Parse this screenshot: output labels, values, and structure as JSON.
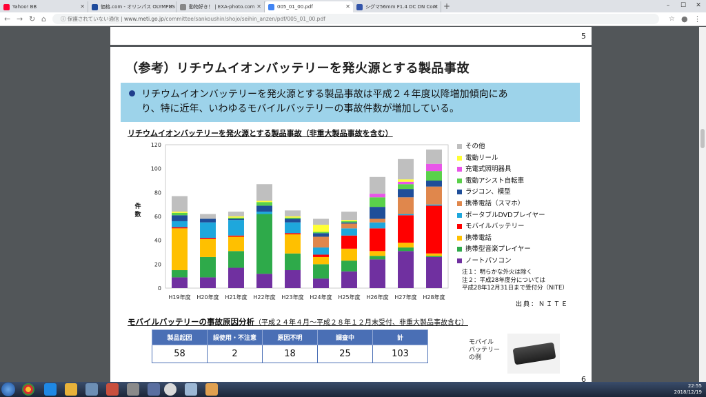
{
  "browser": {
    "tabs": [
      {
        "label": "Yahoo! BB",
        "icon_color": "#ff0033",
        "active": false
      },
      {
        "label": "価格.com - オリンパス OLYMPUS",
        "icon_color": "#1e4b9c",
        "active": false
      },
      {
        "label": "動物好き！ | EXA-photo.com",
        "icon_color": "#888888",
        "active": false
      },
      {
        "label": "005_01_00.pdf",
        "icon_color": "#4285f4",
        "active": true
      },
      {
        "label": "シグマ56mm F1.4 DC DN Cont",
        "icon_color": "#3355aa",
        "active": false
      }
    ],
    "security_label": "保護されていない通信",
    "url_host": "www.meti.go.jp",
    "url_path": "/committee/sankoushin/shojo/seihin_anzen/pdf/005_01_00.pdf"
  },
  "pdf": {
    "page_prev_number": "5",
    "page_number": "6",
    "title": "（参考）リチウムイオンバッテリーを発火源とする製品事故",
    "callout_line1": "リチウムイオンバッテリーを発火源とする製品事故は平成２４年度以降増加傾向にあ",
    "callout_line2": "り、特に近年、いわゆるモバイルバッテリーの事故件数が増加している。",
    "chart_title": "リチウムイオンバッテリーを発火源とする製品事故（非重大製品事故を含む）",
    "notes": [
      "注１：明らかな外火は除く",
      "注２：平成28年度分については",
      "平成28年12月31日まで受付分（NITE）"
    ],
    "source": "出典：ＮＩＴＥ",
    "section_title": "モバイルバッテリーの事故原因分析",
    "section_sub": "（平成２４年４月～平成２８年１２月末受付、非重大製品事故含む）",
    "table": {
      "headers": [
        "製品起因",
        "誤使用・不注意",
        "原因不明",
        "調査中",
        "計"
      ],
      "values": [
        "58",
        "2",
        "18",
        "25",
        "103"
      ]
    },
    "photo_label_1": "モバイル",
    "photo_label_2": "バッテリー",
    "photo_label_3": "の例"
  },
  "chart_data": {
    "type": "bar",
    "stacked": true,
    "title": "リチウムイオンバッテリーを発火源とする製品事故（非重大製品事故を含む）",
    "ylabel": "件数",
    "ylim": [
      0,
      120
    ],
    "yticks": [
      0,
      20,
      40,
      60,
      80,
      100,
      120
    ],
    "grid": false,
    "legend_position": "right",
    "categories": [
      "H19年度",
      "H20年度",
      "H21年度",
      "H22年度",
      "H23年度",
      "H24年度",
      "H25年度",
      "H26年度",
      "H27年度",
      "H28年度"
    ],
    "series": [
      {
        "name": "ノートパソコン",
        "color": "#7030a0",
        "values": [
          9,
          9,
          17,
          12,
          15,
          8,
          14,
          24,
          31,
          26
        ]
      },
      {
        "name": "携帯型音楽プレイヤー",
        "color": "#2eaa4a",
        "values": [
          6,
          17,
          14,
          50,
          14,
          12,
          9,
          3,
          3,
          1
        ]
      },
      {
        "name": "携帯電話",
        "color": "#ffc000",
        "values": [
          35,
          15,
          12,
          0,
          16,
          6,
          10,
          4,
          4,
          2
        ]
      },
      {
        "name": "モバイルバッテリー",
        "color": "#ff0000",
        "values": [
          1,
          1,
          1,
          0,
          1,
          2,
          11,
          19,
          23,
          40
        ]
      },
      {
        "name": "ポータブルDVDプレイヤー",
        "color": "#1ea7dc",
        "values": [
          5,
          13,
          13,
          2,
          9,
          6,
          6,
          5,
          1,
          1
        ]
      },
      {
        "name": "携帯電話（スマホ）",
        "color": "#e0874c",
        "values": [
          0,
          0,
          0,
          0,
          0,
          9,
          4,
          3,
          14,
          15
        ]
      },
      {
        "name": "ラジコン、模型",
        "color": "#1f4e99",
        "values": [
          5,
          3,
          1,
          5,
          3,
          3,
          1,
          10,
          7,
          5
        ]
      },
      {
        "name": "電動アシスト自転車",
        "color": "#5ad14a",
        "values": [
          2,
          0,
          1,
          3,
          1,
          1,
          1,
          8,
          4,
          8
        ]
      },
      {
        "name": "充電式照明器具",
        "color": "#e855e8",
        "values": [
          0,
          0,
          0,
          0,
          0,
          0,
          0,
          3,
          2,
          6
        ]
      },
      {
        "name": "電動リール",
        "color": "#ffff33",
        "values": [
          1,
          0,
          1,
          1,
          1,
          6,
          1,
          0,
          2,
          0
        ]
      },
      {
        "name": "その他",
        "color": "#bfbfbf",
        "values": [
          13,
          4,
          4,
          14,
          5,
          5,
          7,
          14,
          17,
          12
        ]
      }
    ]
  },
  "taskbar": {
    "time": "22:55",
    "date": "2018/12/19"
  }
}
